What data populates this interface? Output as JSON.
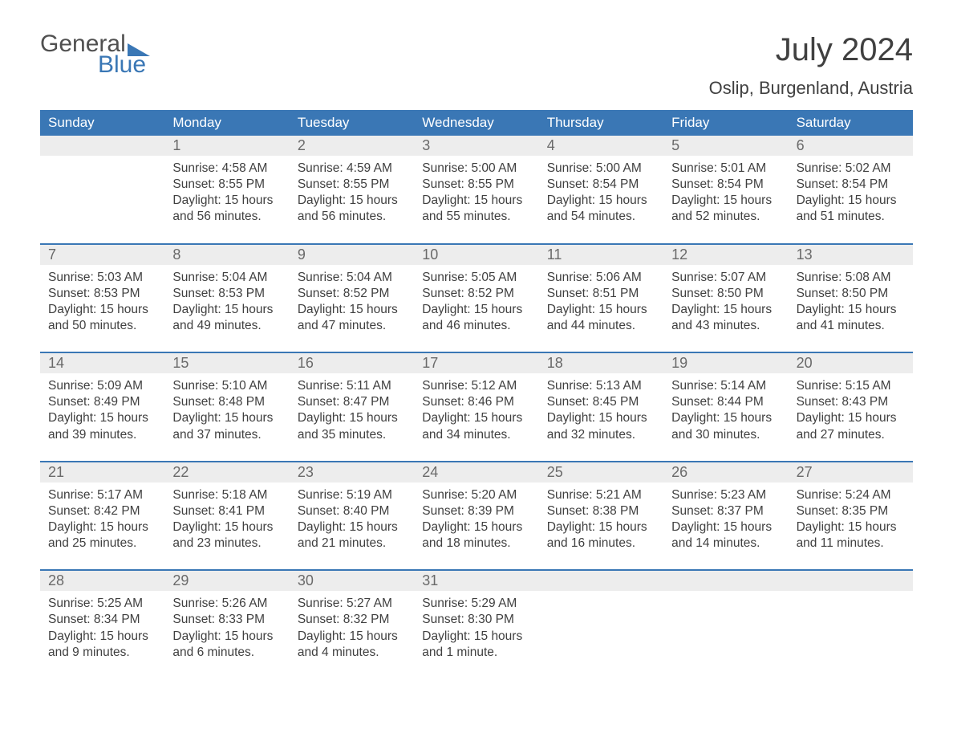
{
  "colors": {
    "brand_blue": "#3a77b5",
    "header_bg": "#3a77b5",
    "header_text": "#ffffff",
    "daynum_bg": "#ededed",
    "daynum_text": "#6a6a6a",
    "body_text": "#404040",
    "page_bg": "#ffffff"
  },
  "logo": {
    "word1": "General",
    "word2": "Blue"
  },
  "title": "July 2024",
  "location": "Oslip, Burgenland, Austria",
  "day_headers": [
    "Sunday",
    "Monday",
    "Tuesday",
    "Wednesday",
    "Thursday",
    "Friday",
    "Saturday"
  ],
  "weeks": [
    [
      {
        "n": "",
        "sunrise": "",
        "sunset": "",
        "daylight": ""
      },
      {
        "n": "1",
        "sunrise": "Sunrise: 4:58 AM",
        "sunset": "Sunset: 8:55 PM",
        "daylight": "Daylight: 15 hours and 56 minutes."
      },
      {
        "n": "2",
        "sunrise": "Sunrise: 4:59 AM",
        "sunset": "Sunset: 8:55 PM",
        "daylight": "Daylight: 15 hours and 56 minutes."
      },
      {
        "n": "3",
        "sunrise": "Sunrise: 5:00 AM",
        "sunset": "Sunset: 8:55 PM",
        "daylight": "Daylight: 15 hours and 55 minutes."
      },
      {
        "n": "4",
        "sunrise": "Sunrise: 5:00 AM",
        "sunset": "Sunset: 8:54 PM",
        "daylight": "Daylight: 15 hours and 54 minutes."
      },
      {
        "n": "5",
        "sunrise": "Sunrise: 5:01 AM",
        "sunset": "Sunset: 8:54 PM",
        "daylight": "Daylight: 15 hours and 52 minutes."
      },
      {
        "n": "6",
        "sunrise": "Sunrise: 5:02 AM",
        "sunset": "Sunset: 8:54 PM",
        "daylight": "Daylight: 15 hours and 51 minutes."
      }
    ],
    [
      {
        "n": "7",
        "sunrise": "Sunrise: 5:03 AM",
        "sunset": "Sunset: 8:53 PM",
        "daylight": "Daylight: 15 hours and 50 minutes."
      },
      {
        "n": "8",
        "sunrise": "Sunrise: 5:04 AM",
        "sunset": "Sunset: 8:53 PM",
        "daylight": "Daylight: 15 hours and 49 minutes."
      },
      {
        "n": "9",
        "sunrise": "Sunrise: 5:04 AM",
        "sunset": "Sunset: 8:52 PM",
        "daylight": "Daylight: 15 hours and 47 minutes."
      },
      {
        "n": "10",
        "sunrise": "Sunrise: 5:05 AM",
        "sunset": "Sunset: 8:52 PM",
        "daylight": "Daylight: 15 hours and 46 minutes."
      },
      {
        "n": "11",
        "sunrise": "Sunrise: 5:06 AM",
        "sunset": "Sunset: 8:51 PM",
        "daylight": "Daylight: 15 hours and 44 minutes."
      },
      {
        "n": "12",
        "sunrise": "Sunrise: 5:07 AM",
        "sunset": "Sunset: 8:50 PM",
        "daylight": "Daylight: 15 hours and 43 minutes."
      },
      {
        "n": "13",
        "sunrise": "Sunrise: 5:08 AM",
        "sunset": "Sunset: 8:50 PM",
        "daylight": "Daylight: 15 hours and 41 minutes."
      }
    ],
    [
      {
        "n": "14",
        "sunrise": "Sunrise: 5:09 AM",
        "sunset": "Sunset: 8:49 PM",
        "daylight": "Daylight: 15 hours and 39 minutes."
      },
      {
        "n": "15",
        "sunrise": "Sunrise: 5:10 AM",
        "sunset": "Sunset: 8:48 PM",
        "daylight": "Daylight: 15 hours and 37 minutes."
      },
      {
        "n": "16",
        "sunrise": "Sunrise: 5:11 AM",
        "sunset": "Sunset: 8:47 PM",
        "daylight": "Daylight: 15 hours and 35 minutes."
      },
      {
        "n": "17",
        "sunrise": "Sunrise: 5:12 AM",
        "sunset": "Sunset: 8:46 PM",
        "daylight": "Daylight: 15 hours and 34 minutes."
      },
      {
        "n": "18",
        "sunrise": "Sunrise: 5:13 AM",
        "sunset": "Sunset: 8:45 PM",
        "daylight": "Daylight: 15 hours and 32 minutes."
      },
      {
        "n": "19",
        "sunrise": "Sunrise: 5:14 AM",
        "sunset": "Sunset: 8:44 PM",
        "daylight": "Daylight: 15 hours and 30 minutes."
      },
      {
        "n": "20",
        "sunrise": "Sunrise: 5:15 AM",
        "sunset": "Sunset: 8:43 PM",
        "daylight": "Daylight: 15 hours and 27 minutes."
      }
    ],
    [
      {
        "n": "21",
        "sunrise": "Sunrise: 5:17 AM",
        "sunset": "Sunset: 8:42 PM",
        "daylight": "Daylight: 15 hours and 25 minutes."
      },
      {
        "n": "22",
        "sunrise": "Sunrise: 5:18 AM",
        "sunset": "Sunset: 8:41 PM",
        "daylight": "Daylight: 15 hours and 23 minutes."
      },
      {
        "n": "23",
        "sunrise": "Sunrise: 5:19 AM",
        "sunset": "Sunset: 8:40 PM",
        "daylight": "Daylight: 15 hours and 21 minutes."
      },
      {
        "n": "24",
        "sunrise": "Sunrise: 5:20 AM",
        "sunset": "Sunset: 8:39 PM",
        "daylight": "Daylight: 15 hours and 18 minutes."
      },
      {
        "n": "25",
        "sunrise": "Sunrise: 5:21 AM",
        "sunset": "Sunset: 8:38 PM",
        "daylight": "Daylight: 15 hours and 16 minutes."
      },
      {
        "n": "26",
        "sunrise": "Sunrise: 5:23 AM",
        "sunset": "Sunset: 8:37 PM",
        "daylight": "Daylight: 15 hours and 14 minutes."
      },
      {
        "n": "27",
        "sunrise": "Sunrise: 5:24 AM",
        "sunset": "Sunset: 8:35 PM",
        "daylight": "Daylight: 15 hours and 11 minutes."
      }
    ],
    [
      {
        "n": "28",
        "sunrise": "Sunrise: 5:25 AM",
        "sunset": "Sunset: 8:34 PM",
        "daylight": "Daylight: 15 hours and 9 minutes."
      },
      {
        "n": "29",
        "sunrise": "Sunrise: 5:26 AM",
        "sunset": "Sunset: 8:33 PM",
        "daylight": "Daylight: 15 hours and 6 minutes."
      },
      {
        "n": "30",
        "sunrise": "Sunrise: 5:27 AM",
        "sunset": "Sunset: 8:32 PM",
        "daylight": "Daylight: 15 hours and 4 minutes."
      },
      {
        "n": "31",
        "sunrise": "Sunrise: 5:29 AM",
        "sunset": "Sunset: 8:30 PM",
        "daylight": "Daylight: 15 hours and 1 minute."
      },
      {
        "n": "",
        "sunrise": "",
        "sunset": "",
        "daylight": ""
      },
      {
        "n": "",
        "sunrise": "",
        "sunset": "",
        "daylight": ""
      },
      {
        "n": "",
        "sunrise": "",
        "sunset": "",
        "daylight": ""
      }
    ]
  ]
}
